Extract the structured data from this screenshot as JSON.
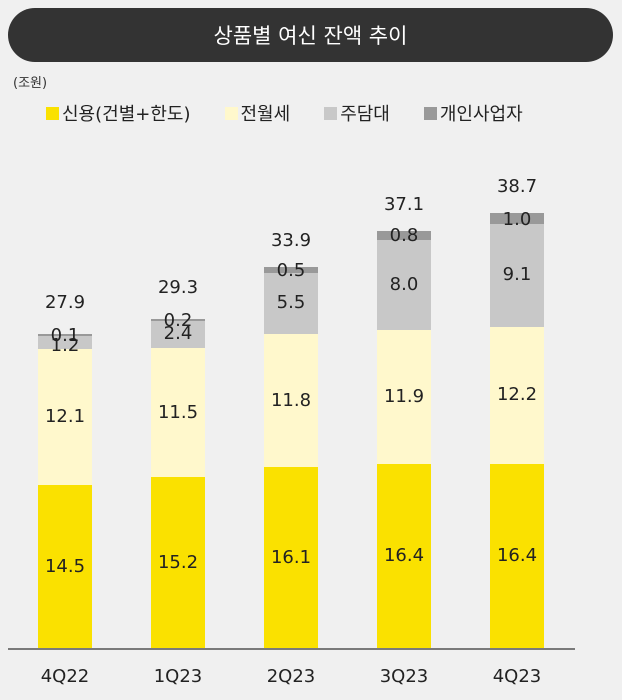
{
  "header": {
    "title": "상품별 여신 잔액 추이"
  },
  "unit_label": "(조원)",
  "legend": [
    {
      "label": "신용(건별+한도)",
      "color": "#fae100"
    },
    {
      "label": "전월세",
      "color": "#fff8cc"
    },
    {
      "label": "주담대",
      "color": "#c8c8c8"
    },
    {
      "label": "개인사업자",
      "color": "#999999"
    }
  ],
  "chart_data": {
    "type": "bar",
    "stacked": true,
    "title": "상품별 여신 잔액 추이",
    "ylabel": "(조원)",
    "xlabel": "",
    "categories": [
      "4Q22",
      "1Q23",
      "2Q23",
      "3Q23",
      "4Q23"
    ],
    "series": [
      {
        "name": "신용(건별+한도)",
        "color": "#fae100",
        "values": [
          14.5,
          15.2,
          16.1,
          16.4,
          16.4
        ]
      },
      {
        "name": "전월세",
        "color": "#fff8cc",
        "values": [
          12.1,
          11.5,
          11.8,
          11.9,
          12.2
        ]
      },
      {
        "name": "주담대",
        "color": "#c8c8c8",
        "values": [
          1.2,
          2.4,
          5.5,
          8.0,
          9.1
        ]
      },
      {
        "name": "개인사업자",
        "color": "#999999",
        "values": [
          0.1,
          0.2,
          0.5,
          0.8,
          1.0
        ]
      }
    ],
    "totals": [
      27.9,
      29.3,
      33.9,
      37.1,
      38.7
    ],
    "total_labels": [
      "27.9",
      "29.3",
      "33.9",
      "37.1",
      "38.7"
    ],
    "value_labels": [
      [
        "14.5",
        "15.2",
        "16.1",
        "16.4",
        "16.4"
      ],
      [
        "12.1",
        "11.5",
        "11.8",
        "11.9",
        "12.2"
      ],
      [
        "1.2",
        "2.4",
        "5.5",
        "8.0",
        "9.1"
      ],
      [
        "0.1",
        "0.2",
        "0.5",
        "0.8",
        "1.0"
      ]
    ],
    "legend_position": "top",
    "grid": false
  }
}
